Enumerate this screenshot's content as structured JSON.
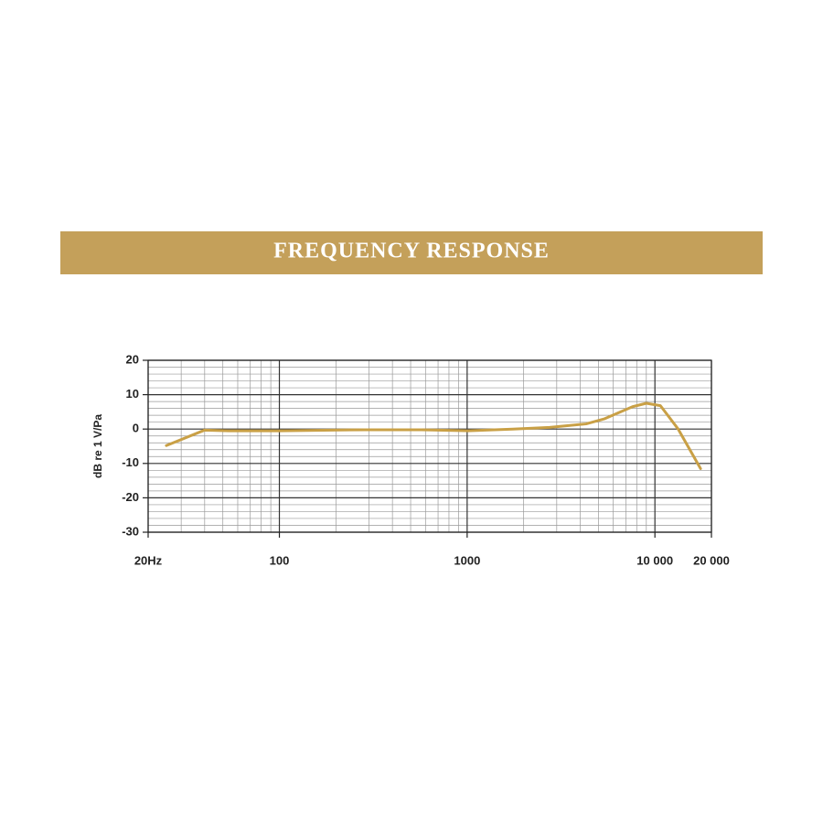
{
  "chart_data": {
    "type": "line",
    "title": "FREQUENCY RESPONSE",
    "y_label": "dB re 1 V/Pa",
    "x_scale": "log",
    "grid": true,
    "x": [
      25,
      40,
      54,
      100,
      290,
      570,
      1000,
      1750,
      2750,
      4300,
      5400,
      7600,
      9000,
      10700,
      13300,
      17500
    ],
    "series": [
      {
        "name": "Frequency response",
        "color": "#c9a046",
        "values": [
          -4.8,
          -0.3,
          -0.5,
          -0.5,
          -0.2,
          -0.2,
          -0.5,
          0,
          0.5,
          1.5,
          3,
          6.5,
          7.5,
          6.8,
          0,
          -11.5
        ]
      }
    ],
    "xlim": [
      20,
      20000
    ],
    "xticks": [
      {
        "value": 20,
        "label": "20Hz"
      },
      100,
      1000,
      {
        "value": 10000,
        "label": "10 000"
      },
      {
        "value": 20000,
        "label": "20 000"
      }
    ],
    "x_minor_ticks": [
      30,
      40,
      50,
      60,
      70,
      80,
      90,
      200,
      300,
      400,
      500,
      600,
      700,
      800,
      900,
      2000,
      3000,
      4000,
      5000,
      6000,
      7000,
      8000,
      9000
    ],
    "ylim": [
      -30,
      20
    ],
    "yticks": [
      20,
      10,
      0,
      -10,
      -20,
      -30
    ],
    "y_minor_ticks": [
      -28,
      -26,
      -24,
      -22,
      -18,
      -16,
      -14,
      -12,
      -8,
      -6,
      -4,
      -2,
      2,
      4,
      6,
      8,
      12,
      14,
      16,
      18
    ]
  }
}
